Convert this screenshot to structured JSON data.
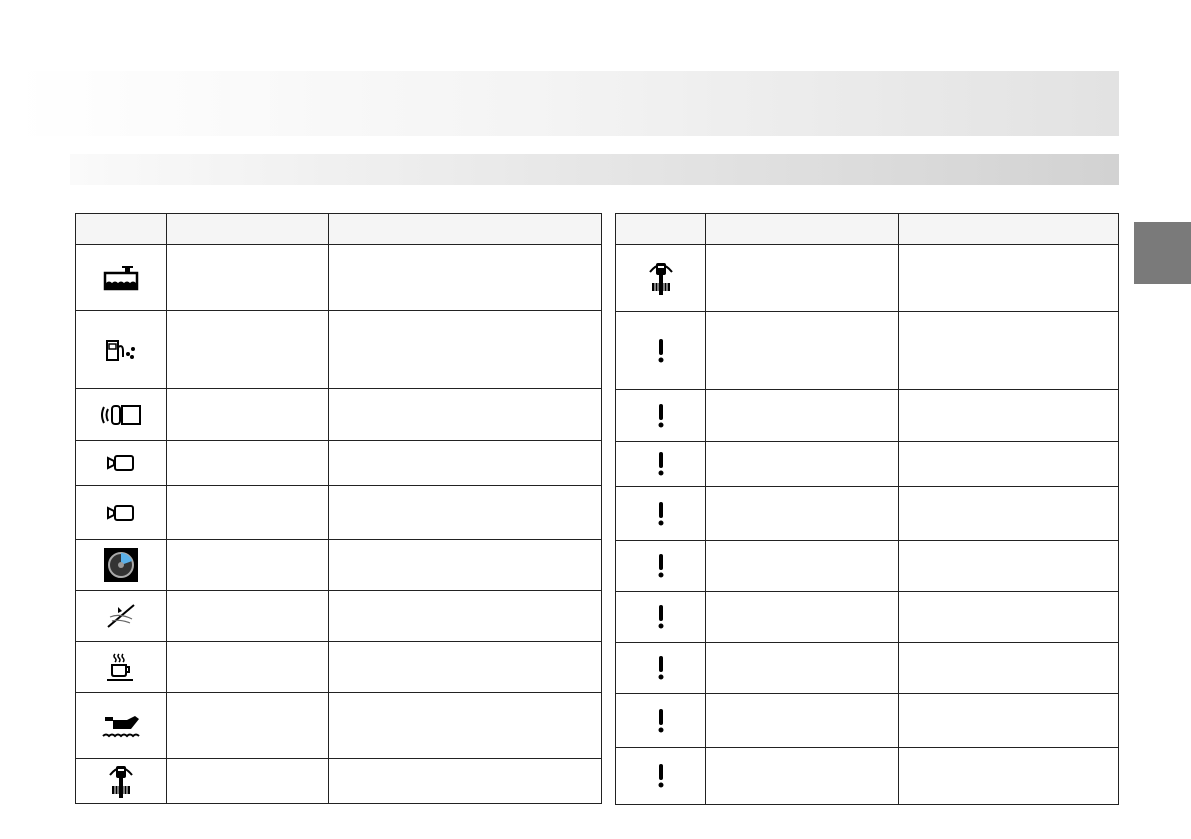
{
  "left_table": {
    "rows": [
      "coolant-level-icon",
      "fuel-leak-icon",
      "radar-sensor-icon",
      "camera-icon",
      "camera-icon",
      "speedometer-icon",
      "lane-assist-off-icon",
      "coffee-cup-icon",
      "oil-pressure-icon",
      "steering-column-icon"
    ]
  },
  "right_table": {
    "rows": [
      "steering-column-icon",
      "exclamation-icon",
      "exclamation-icon",
      "exclamation-icon",
      "exclamation-icon",
      "exclamation-icon",
      "exclamation-icon",
      "exclamation-icon",
      "exclamation-icon",
      "exclamation-icon"
    ]
  },
  "colors": {
    "section_tab": "#7a7a7a",
    "header_fill": "#f5f5f5"
  }
}
